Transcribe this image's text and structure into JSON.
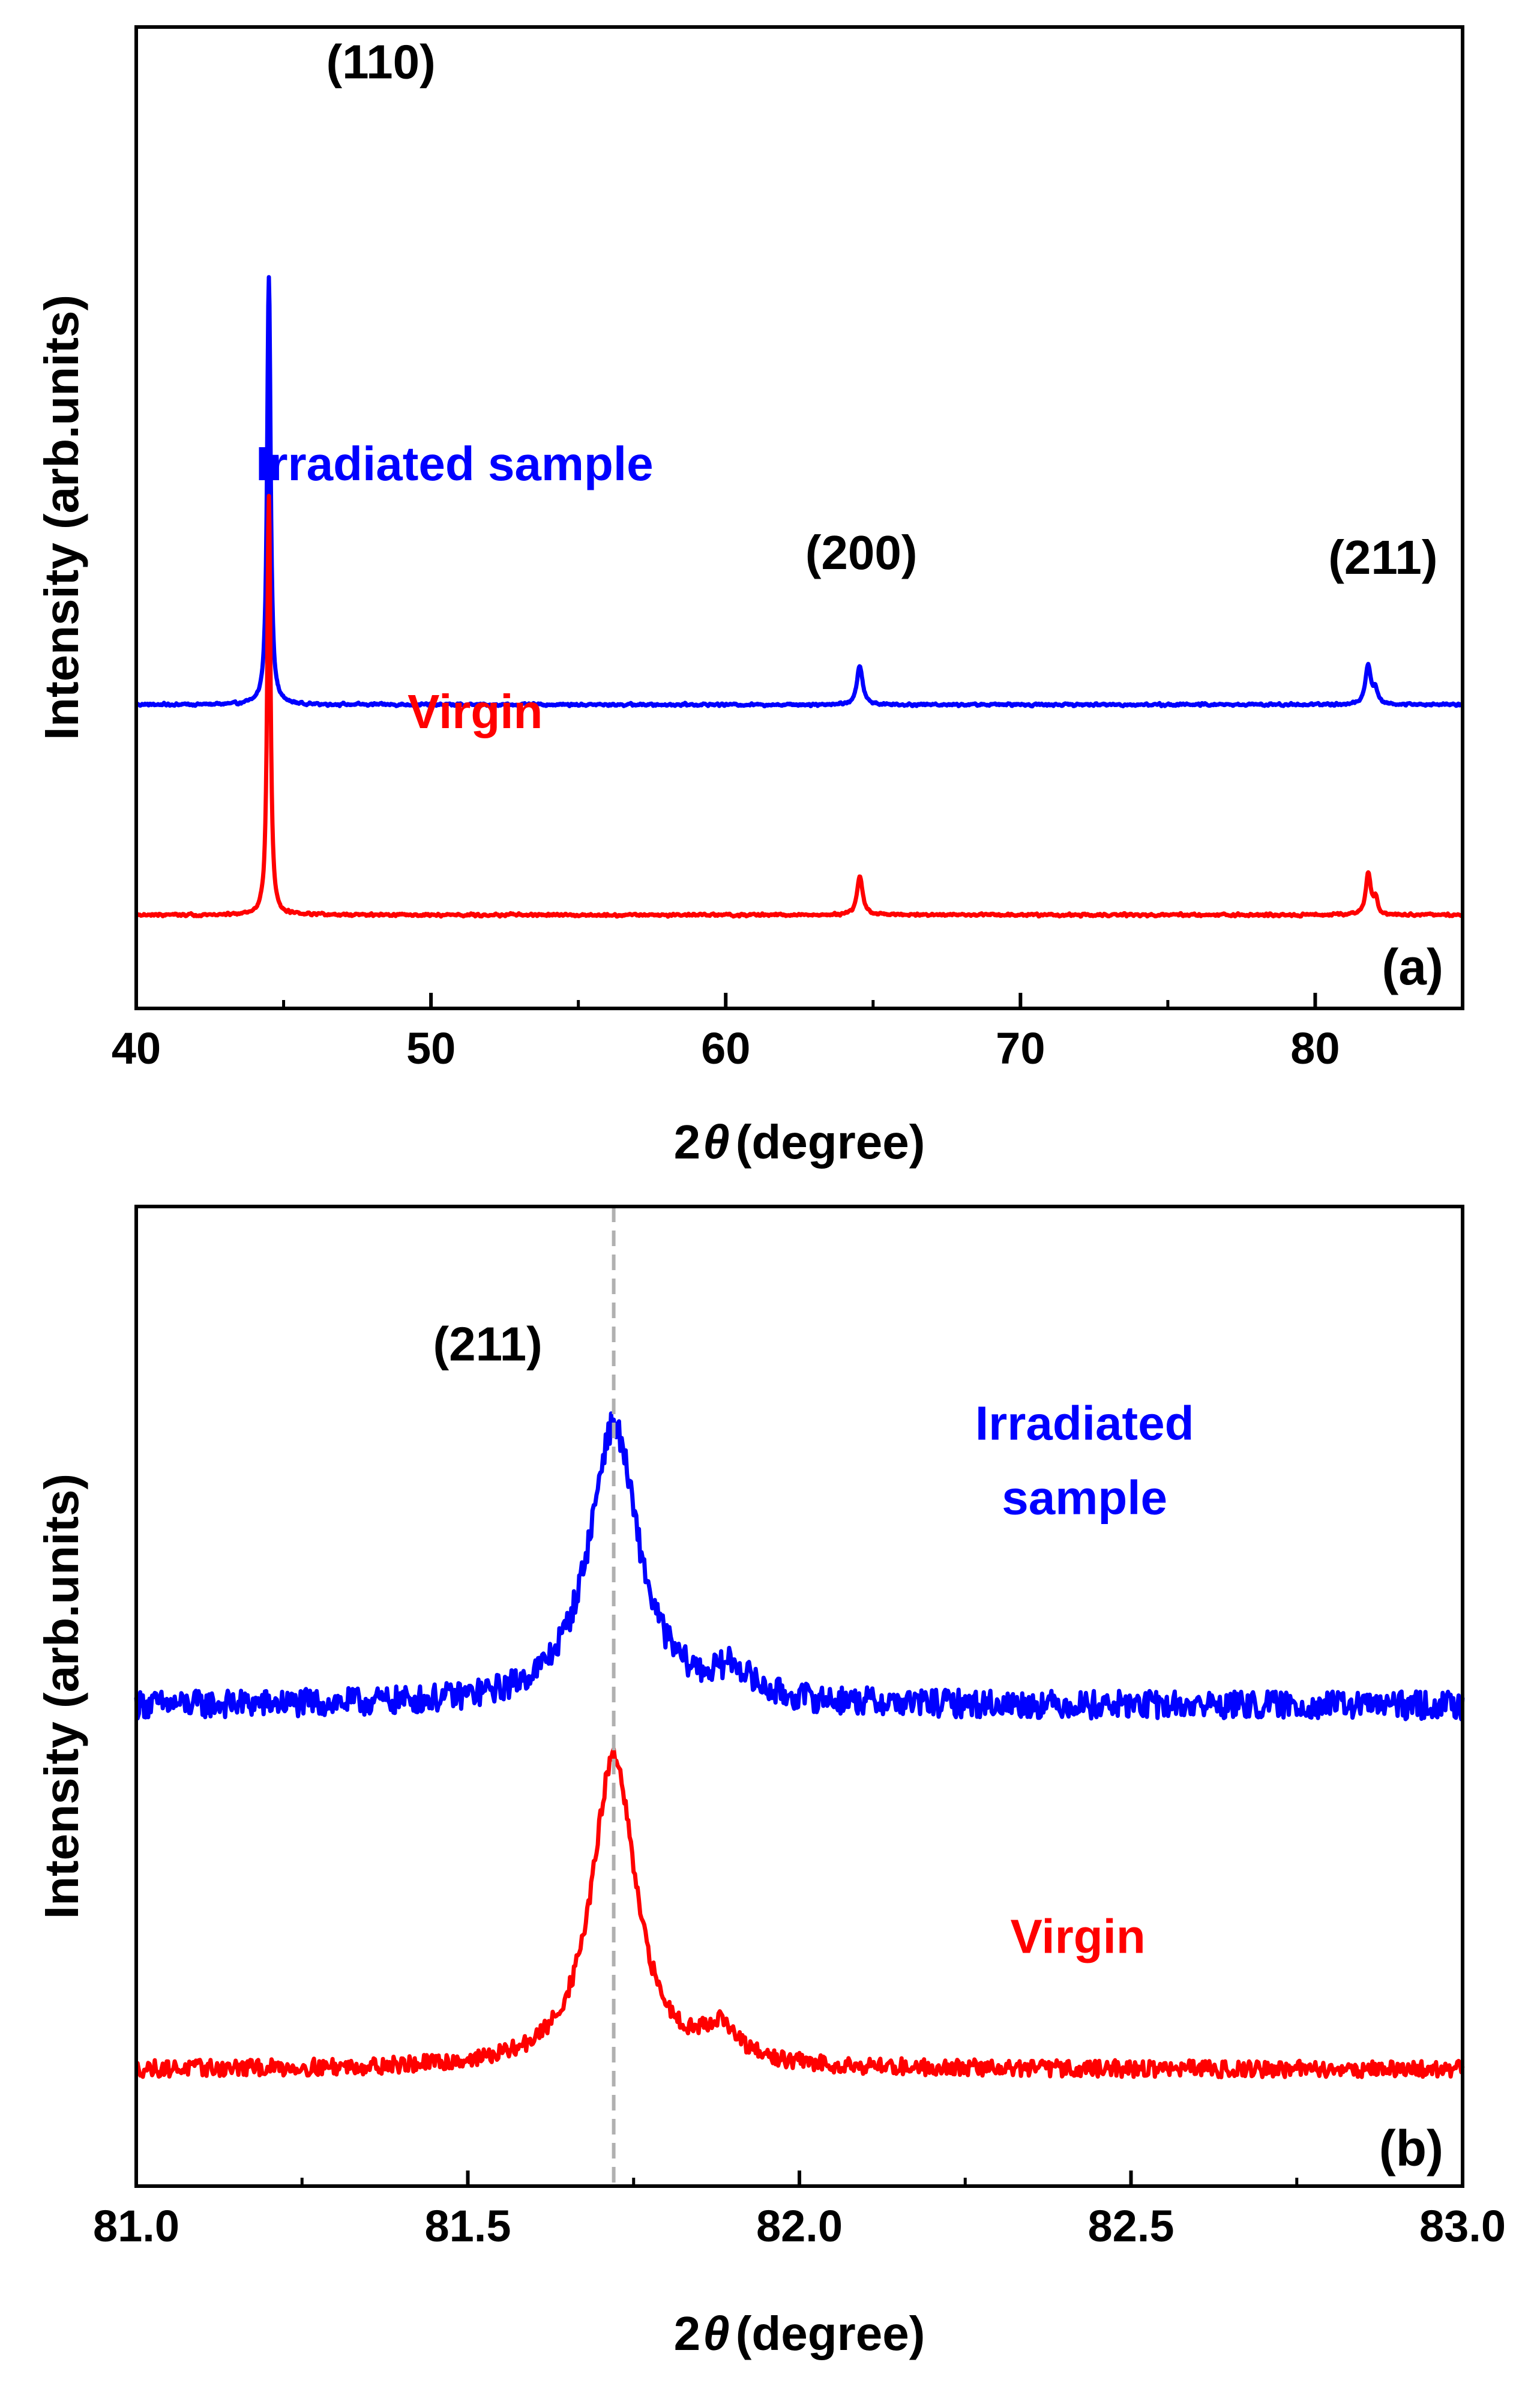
{
  "chart_data": [
    {
      "panel": "(a)",
      "type": "line",
      "xlabel_prefix": "2",
      "xlabel_symbol": "θ",
      "xlabel_suffix": "(degree)",
      "ylabel": "Intensity (arb.units)",
      "xlim": [
        40,
        85
      ],
      "xticks": [
        40,
        50,
        60,
        70,
        80
      ],
      "xtick_labels": [
        "40",
        "50",
        "60",
        "70",
        "80"
      ],
      "xminor_ticks": [
        45,
        55,
        65,
        75
      ],
      "y_ticks_shown": false,
      "grid": false,
      "series": [
        {
          "name": "Irradiated sample",
          "color": "#0000ff",
          "label_at": [
            50.8,
            0.93
          ],
          "baseline": 0.45,
          "noise": 0.004,
          "peaks": [
            {
              "x": 44.5,
              "height": 0.97,
              "width": 0.13
            },
            {
              "x": 64.55,
              "height": 0.085,
              "width": 0.22
            },
            {
              "x": 81.8,
              "height": 0.085,
              "width": 0.22
            },
            {
              "x": 82.05,
              "height": 0.03,
              "width": 0.16
            }
          ]
        },
        {
          "name": "Virgin",
          "color": "#ff0000",
          "label_at": [
            51.5,
            0.4
          ],
          "baseline": 0.0,
          "noise": 0.004,
          "peaks": [
            {
              "x": 44.5,
              "height": 0.96,
              "width": 0.12
            },
            {
              "x": 64.55,
              "height": 0.085,
              "width": 0.22
            },
            {
              "x": 81.8,
              "height": 0.09,
              "width": 0.2
            },
            {
              "x": 82.05,
              "height": 0.035,
              "width": 0.15
            }
          ]
        }
      ],
      "annotations": [
        {
          "text": "(110)",
          "x": 48.3,
          "y": 1.79
        },
        {
          "text": "(200)",
          "x": 64.6,
          "y": 0.74
        },
        {
          "text": "(211)",
          "x": 82.3,
          "y": 0.73
        }
      ],
      "ylim": [
        -0.2,
        1.9
      ]
    },
    {
      "panel": "(b)",
      "type": "line",
      "xlabel_prefix": "2",
      "xlabel_symbol": "θ",
      "xlabel_suffix": "(degree)",
      "ylabel": "Intensity (arb.units)",
      "xlim": [
        81.0,
        83.0
      ],
      "xticks": [
        81.0,
        81.5,
        82.0,
        82.5,
        83.0
      ],
      "xtick_labels": [
        "81.0",
        "81.5",
        "82.0",
        "82.5",
        "83.0"
      ],
      "xminor_ticks": [
        81.25,
        81.75,
        82.25,
        82.75
      ],
      "y_ticks_shown": false,
      "grid": false,
      "reference_line_x": 81.72,
      "series": [
        {
          "name": "Irradiated sample",
          "name_line1": "Irradiated",
          "name_line2": "sample",
          "color": "#0000ff",
          "label_at": [
            82.43,
            1.35
          ],
          "baseline": 0.78,
          "noise": 0.03,
          "peaks": [
            {
              "x": 81.72,
              "height": 0.6,
              "width": 0.09
            },
            {
              "x": 81.9,
              "height": 0.06,
              "width": 0.06
            }
          ]
        },
        {
          "name": "Virgin",
          "color": "#ff0000",
          "label_at": [
            82.42,
            0.25
          ],
          "baseline": 0.0,
          "noise": 0.018,
          "peaks": [
            {
              "x": 81.72,
              "height": 0.67,
              "width": 0.08
            },
            {
              "x": 81.88,
              "height": 0.07,
              "width": 0.06
            }
          ]
        }
      ],
      "annotations": [
        {
          "text": "(211)",
          "x": 81.53,
          "y": 1.52
        }
      ],
      "ylim": [
        -0.25,
        1.85
      ]
    }
  ]
}
